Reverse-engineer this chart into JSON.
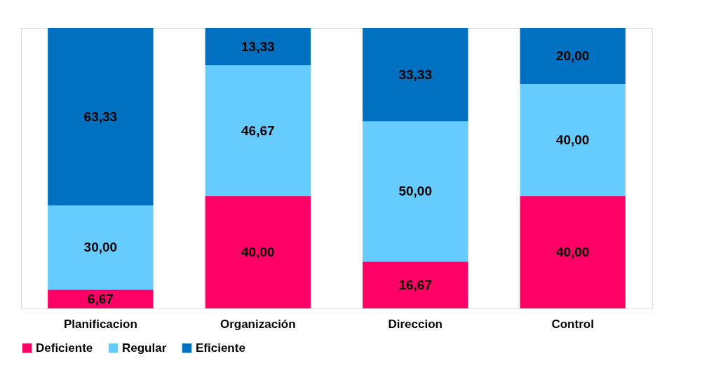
{
  "chart_data": {
    "type": "bar",
    "stacked": true,
    "categories": [
      "Planificacion",
      "Organización",
      "Direccion",
      "Control"
    ],
    "series": [
      {
        "name": "Deficiente",
        "color": "#ff0066",
        "values": [
          6.67,
          40.0,
          16.67,
          40.0
        ],
        "value_labels": [
          "6,67",
          "40,00",
          "16,67",
          "40,00"
        ]
      },
      {
        "name": "Regular",
        "color": "#66ccff",
        "values": [
          30.0,
          46.67,
          50.0,
          40.0
        ],
        "value_labels": [
          "30,00",
          "46,67",
          "50,00",
          "40,00"
        ]
      },
      {
        "name": "Eficiente",
        "color": "#0070c0",
        "values": [
          63.33,
          13.33,
          33.33,
          20.0
        ],
        "value_labels": [
          "63,33",
          "13,33",
          "33,33",
          "20,00"
        ]
      }
    ],
    "legend": "bottom",
    "grid": false
  }
}
